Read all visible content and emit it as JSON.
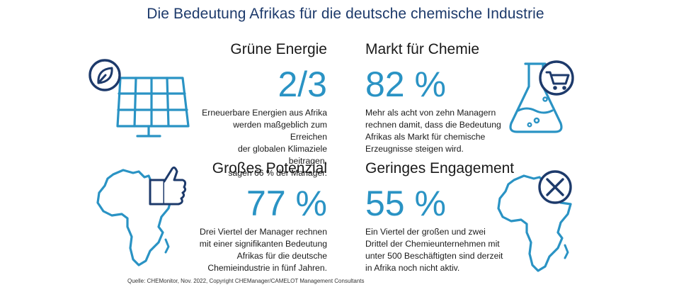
{
  "title": "Die Bedeutung Afrikas für die deutsche chemische Industrie",
  "cards": {
    "green_energy": {
      "heading": "Grüne Energie",
      "value": "2/3",
      "lines": [
        "Erneuerbare Energien aus Afrika",
        "werden maßgeblich zum Erreichen",
        "der globalen Klimaziele beitragen,",
        "sagen 66 % der Manager."
      ]
    },
    "chem_market": {
      "heading": "Markt für Chemie",
      "value": "82 %",
      "lines": [
        "Mehr als acht von zehn Managern",
        "rechnen damit, dass die Bedeutung",
        "Afrikas als Markt für chemische",
        "Erzeugnisse steigen wird."
      ]
    },
    "potential": {
      "heading": "Großes Potenzial",
      "value": "77 %",
      "lines": [
        "Drei Viertel der Manager rechnen",
        "mit einer signifikanten Bedeutung",
        "Afrikas für die deutsche",
        "Chemieindustrie in fünf Jahren."
      ]
    },
    "engagement": {
      "heading": "Geringes Engagement",
      "value": "55 %",
      "lines": [
        "Ein Viertel der großen und zwei",
        "Drittel der Chemieunternehmen mit",
        "unter 500 Beschäftigten sind derzeit",
        "in Afrika noch nicht aktiv."
      ]
    }
  },
  "source": "Quelle: CHEMonitor, Nov. 2022, Copyright CHEManager/CAMELOT Management Consultants",
  "colors": {
    "navy": "#1d3a6b",
    "accent": "#2a93c4",
    "text": "#1a1a1a"
  },
  "icons": [
    "solar-panel-leaf-icon",
    "flask-cart-icon",
    "africa-thumbs-up-icon",
    "africa-x-icon"
  ]
}
